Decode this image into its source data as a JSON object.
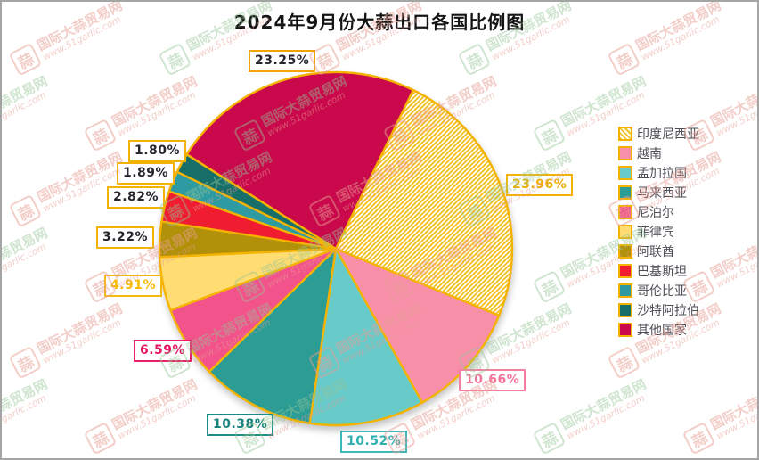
{
  "title": "2024年9月份大蒜出口各国比例图",
  "watermark": {
    "logo_char": "蒜",
    "site_name": "国际大蒜贸易网",
    "site_url": "www.51garlic.com",
    "green": "rgba(151,197,151,0.45)",
    "pink": "rgba(232,157,148,0.5)"
  },
  "chart_data": {
    "type": "pie",
    "title": "2024年9月份大蒜出口各国比例图",
    "legend_position": "right",
    "grid": false,
    "start_angle_deg": 26,
    "direction": "clockwise",
    "slice_stroke": "#F5B301",
    "series": [
      {
        "id": "indonesia",
        "name": "印度尼西亚",
        "value": 23.96,
        "label": "23.96%",
        "color": "#FFFBEA",
        "hatch": true,
        "callout_border": "#F2B306",
        "callout_text": "#EFAF02"
      },
      {
        "id": "vietnam",
        "name": "越南",
        "value": 10.66,
        "label": "10.66%",
        "color": "#F78FA9",
        "hatch": false,
        "callout_border": "#F480A1",
        "callout_text": "#F27499"
      },
      {
        "id": "bangladesh",
        "name": "孟加拉国",
        "value": 10.52,
        "label": "10.52%",
        "color": "#68CBCA",
        "hatch": false,
        "callout_border": "#3FB7B8",
        "callout_text": "#2FAFB0"
      },
      {
        "id": "malaysia",
        "name": "马来西亚",
        "value": 10.38,
        "label": "10.38%",
        "color": "#2B9D95",
        "hatch": false,
        "callout_border": "#1E8B84",
        "callout_text": "#17837C"
      },
      {
        "id": "nepal",
        "name": "尼泊尔",
        "value": 6.59,
        "label": "6.59%",
        "color": "#F2538B",
        "hatch": false,
        "callout_border": "#E81F69",
        "callout_text": "#E51564"
      },
      {
        "id": "philippines",
        "name": "菲律宾",
        "value": 4.91,
        "label": "4.91%",
        "color": "#FFDD72",
        "hatch": false,
        "callout_border": "#F5B90D",
        "callout_text": "#F7BB05"
      },
      {
        "id": "uae",
        "name": "阿联酋",
        "value": 3.22,
        "label": "3.22%",
        "color": "#B1900A",
        "hatch": false,
        "callout_border": "#F2B306",
        "callout_text": "#26262E"
      },
      {
        "id": "pakistan",
        "name": "巴基斯坦",
        "value": 2.82,
        "label": "2.82%",
        "color": "#F01D31",
        "hatch": false,
        "callout_border": "#F2B306",
        "callout_text": "#26262E"
      },
      {
        "id": "colombia",
        "name": "哥伦比亚",
        "value": 1.89,
        "label": "1.89%",
        "color": "#2E9BA3",
        "hatch": false,
        "callout_border": "#F2B306",
        "callout_text": "#26262E"
      },
      {
        "id": "saudi-arabia",
        "name": "沙特阿拉伯",
        "value": 1.8,
        "label": "1.80%",
        "color": "#186F69",
        "hatch": false,
        "callout_border": "#F2B306",
        "callout_text": "#26262E"
      },
      {
        "id": "other-countries",
        "name": "其他国家",
        "value": 23.25,
        "label": "23.25%",
        "color": "#C9094B",
        "hatch": false,
        "callout_border": "#F2A406",
        "callout_text": "#26262E"
      }
    ]
  }
}
